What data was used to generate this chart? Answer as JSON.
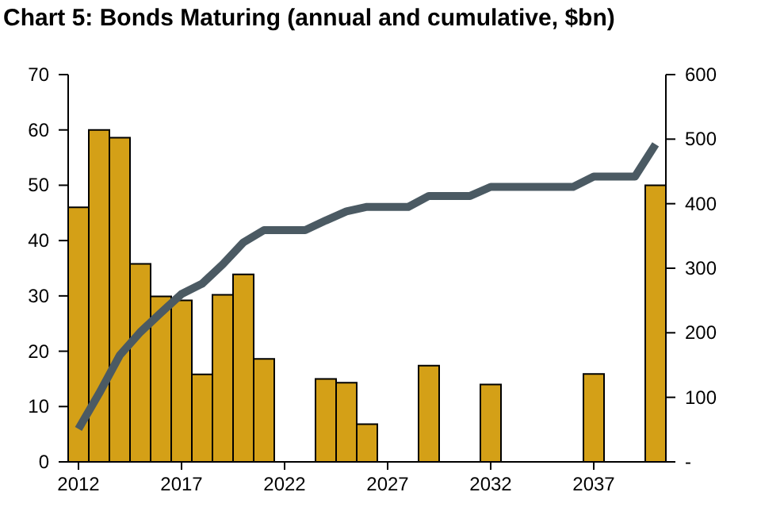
{
  "chart_data": {
    "type": "bar",
    "title": "Chart 5: Bonds Maturing (annual and cumulative, $bn)",
    "categories": [
      "2012",
      null,
      null,
      null,
      null,
      "2017",
      null,
      null,
      null,
      null,
      "2022",
      null,
      null,
      null,
      null,
      "2027",
      null,
      null,
      null,
      null,
      "2032",
      null,
      null,
      null,
      null,
      "2037",
      null,
      null,
      null
    ],
    "series": [
      {
        "color": "#d4a017",
        "values": [
          46,
          60,
          58.6,
          35.8,
          29.9,
          29.2,
          15.8,
          30.2,
          33.9,
          18.6,
          0,
          0,
          15.0,
          14.3,
          6.8,
          0,
          0,
          17.4,
          0,
          0,
          14.0,
          0,
          0,
          0,
          0,
          15.9,
          0,
          0,
          50.0
        ]
      },
      {
        "type": "line",
        "axis": "y2",
        "color": "#4b5a63",
        "values": [
          51,
          106,
          165,
          201,
          231,
          260,
          276,
          306,
          340,
          359,
          359,
          359,
          374,
          388,
          395,
          395,
          395,
          412,
          412,
          412,
          426,
          426,
          426,
          426,
          426,
          442,
          442,
          442,
          492
        ]
      }
    ],
    "ylim": [
      0,
      70
    ],
    "yticks": [
      0,
      10,
      20,
      30,
      40,
      50,
      60,
      70
    ],
    "y2lim": [
      0,
      600
    ],
    "y2ticks": [
      {
        "value": 0,
        "label": "-"
      },
      100,
      200,
      300,
      400,
      500,
      600
    ],
    "grid": false,
    "legend": false
  }
}
